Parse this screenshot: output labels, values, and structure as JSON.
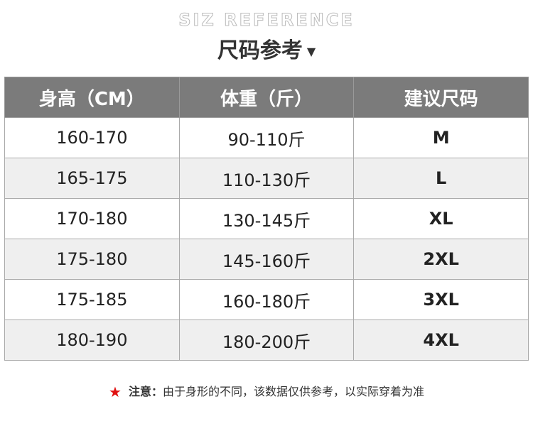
{
  "header": {
    "subtitle": "SIZ REFERENCE",
    "title": "尺码参考",
    "arrow_icon": "triangle-down"
  },
  "table": {
    "columns": [
      "身高（CM）",
      "体重（斤）",
      "建议尺码"
    ],
    "rows": [
      [
        "160-170",
        "90-110斤",
        "M"
      ],
      [
        "165-175",
        "110-130斤",
        "L"
      ],
      [
        "170-180",
        "130-145斤",
        "XL"
      ],
      [
        "175-180",
        "145-160斤",
        "2XL"
      ],
      [
        "175-185",
        "160-180斤",
        "3XL"
      ],
      [
        "180-190",
        "180-200斤",
        "4XL"
      ]
    ]
  },
  "note": {
    "icon": "red-star",
    "label": "注意：",
    "text": "由于身形的不同，该数据仅供参考，以实际穿着为准",
    "star_color": "#e01010"
  }
}
